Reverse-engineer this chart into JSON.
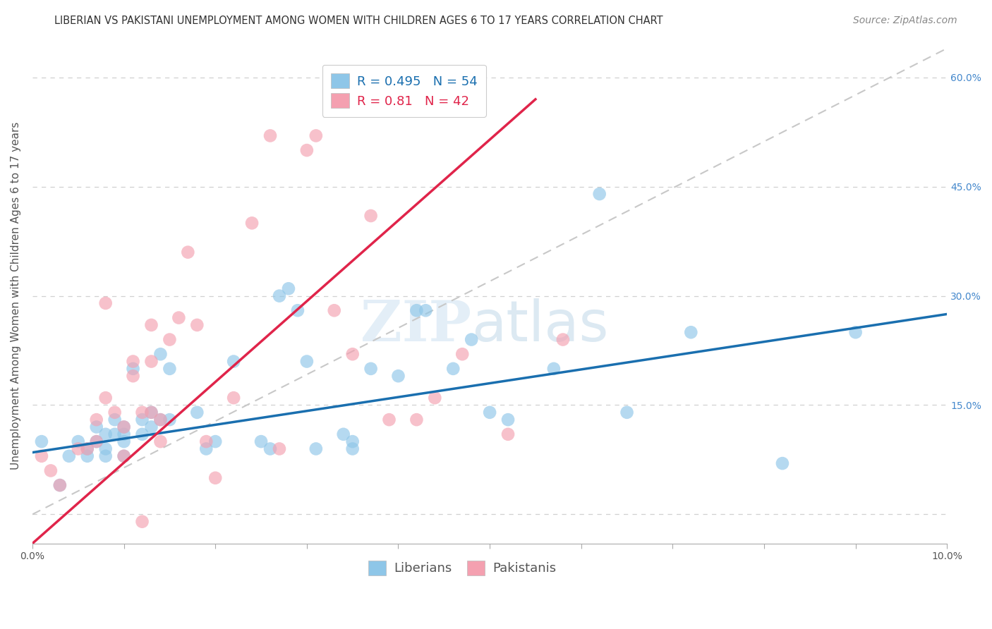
{
  "title": "LIBERIAN VS PAKISTANI UNEMPLOYMENT AMONG WOMEN WITH CHILDREN AGES 6 TO 17 YEARS CORRELATION CHART",
  "source": "Source: ZipAtlas.com",
  "ylabel": "Unemployment Among Women with Children Ages 6 to 17 years",
  "y_ticks": [
    0.0,
    0.15,
    0.3,
    0.45,
    0.6
  ],
  "y_tick_labels_right": [
    "",
    "15.0%",
    "30.0%",
    "45.0%",
    "60.0%"
  ],
  "xlim": [
    0.0,
    0.1
  ],
  "ylim": [
    -0.04,
    0.64
  ],
  "R_liberian": 0.495,
  "N_liberian": 54,
  "R_pakistani": 0.81,
  "N_pakistani": 42,
  "color_liberian": "#8ec6e8",
  "color_pakistani": "#f4a0b0",
  "color_trend_liberian": "#1a6faf",
  "color_trend_pakistani": "#e0244a",
  "color_refline": "#c8c8c8",
  "legend_label_liberian": "Liberians",
  "legend_label_pakistani": "Pakistanis",
  "trend_lib_x0": 0.0,
  "trend_lib_y0": 0.085,
  "trend_lib_x1": 0.1,
  "trend_lib_y1": 0.275,
  "trend_pak_x0": 0.0,
  "trend_pak_y0": -0.04,
  "trend_pak_x1": 0.055,
  "trend_pak_y1": 0.57,
  "refline_x0": 0.0,
  "refline_y0": 0.0,
  "refline_x1": 0.1,
  "refline_y1": 0.64,
  "liberian_x": [
    0.001,
    0.003,
    0.004,
    0.005,
    0.006,
    0.006,
    0.007,
    0.007,
    0.008,
    0.008,
    0.008,
    0.009,
    0.009,
    0.01,
    0.01,
    0.01,
    0.01,
    0.011,
    0.012,
    0.012,
    0.013,
    0.013,
    0.014,
    0.014,
    0.015,
    0.015,
    0.018,
    0.019,
    0.02,
    0.022,
    0.025,
    0.026,
    0.027,
    0.028,
    0.029,
    0.03,
    0.031,
    0.034,
    0.035,
    0.035,
    0.037,
    0.04,
    0.042,
    0.043,
    0.046,
    0.048,
    0.05,
    0.052,
    0.057,
    0.062,
    0.065,
    0.072,
    0.082,
    0.09
  ],
  "liberian_y": [
    0.1,
    0.04,
    0.08,
    0.1,
    0.08,
    0.09,
    0.12,
    0.1,
    0.11,
    0.09,
    0.08,
    0.13,
    0.11,
    0.12,
    0.11,
    0.1,
    0.08,
    0.2,
    0.13,
    0.11,
    0.14,
    0.12,
    0.22,
    0.13,
    0.2,
    0.13,
    0.14,
    0.09,
    0.1,
    0.21,
    0.1,
    0.09,
    0.3,
    0.31,
    0.28,
    0.21,
    0.09,
    0.11,
    0.1,
    0.09,
    0.2,
    0.19,
    0.28,
    0.28,
    0.2,
    0.24,
    0.14,
    0.13,
    0.2,
    0.44,
    0.14,
    0.25,
    0.07,
    0.25
  ],
  "pakistani_x": [
    0.001,
    0.002,
    0.003,
    0.005,
    0.006,
    0.007,
    0.007,
    0.008,
    0.008,
    0.009,
    0.01,
    0.01,
    0.011,
    0.011,
    0.012,
    0.012,
    0.013,
    0.013,
    0.013,
    0.014,
    0.014,
    0.015,
    0.016,
    0.017,
    0.018,
    0.019,
    0.02,
    0.022,
    0.024,
    0.026,
    0.027,
    0.03,
    0.031,
    0.033,
    0.035,
    0.037,
    0.039,
    0.042,
    0.044,
    0.047,
    0.052,
    0.058
  ],
  "pakistani_y": [
    0.08,
    0.06,
    0.04,
    0.09,
    0.09,
    0.13,
    0.1,
    0.29,
    0.16,
    0.14,
    0.12,
    0.08,
    0.21,
    0.19,
    0.14,
    -0.01,
    0.26,
    0.21,
    0.14,
    0.13,
    0.1,
    0.24,
    0.27,
    0.36,
    0.26,
    0.1,
    0.05,
    0.16,
    0.4,
    0.52,
    0.09,
    0.5,
    0.52,
    0.28,
    0.22,
    0.41,
    0.13,
    0.13,
    0.16,
    0.22,
    0.11,
    0.24
  ],
  "background_color": "#ffffff",
  "grid_color": "#d0d0d0",
  "watermark_zip": "ZIP",
  "watermark_atlas": "atlas",
  "title_fontsize": 10.5,
  "axis_label_fontsize": 11,
  "tick_fontsize": 10,
  "legend_fontsize": 13,
  "source_fontsize": 10
}
